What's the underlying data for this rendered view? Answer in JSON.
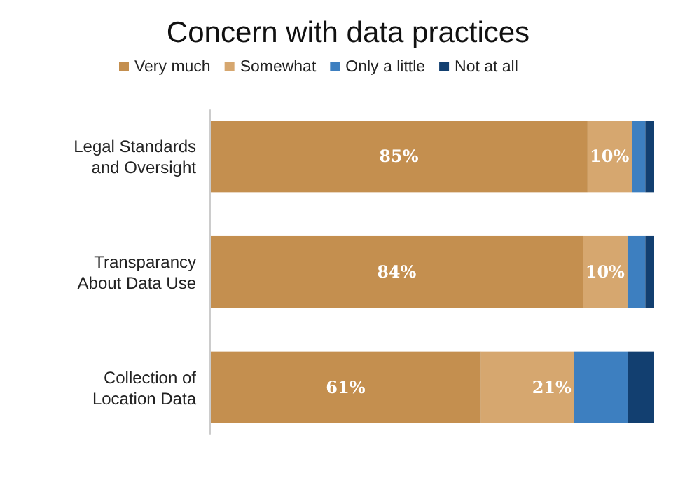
{
  "chart_data": {
    "type": "bar",
    "title": "Concern with data practices",
    "orientation": "horizontal",
    "stacked": true,
    "legend": "top",
    "categories": [
      "Legal Standards and Oversight",
      "Transparancy About Data Use",
      "Collection of Location Data"
    ],
    "series": [
      {
        "name": "Very much",
        "color": "#c48f4f",
        "values": [
          85,
          84,
          61
        ],
        "value_labels": [
          "85%",
          "84%",
          "61%"
        ]
      },
      {
        "name": "Somewhat",
        "color": "#d6a76f",
        "values": [
          10,
          10,
          21
        ],
        "value_labels": [
          "10%",
          "10%",
          "21%"
        ]
      },
      {
        "name": "Only a little",
        "color": "#3d7fc0",
        "values": [
          3,
          4,
          12
        ],
        "value_labels": [
          null,
          null,
          null
        ]
      },
      {
        "name": "Not at all",
        "color": "#123f70",
        "values": [
          2,
          2,
          6
        ],
        "value_labels": [
          null,
          null,
          null
        ]
      }
    ],
    "xlim": [
      0,
      100
    ],
    "tick_labels": "y"
  }
}
